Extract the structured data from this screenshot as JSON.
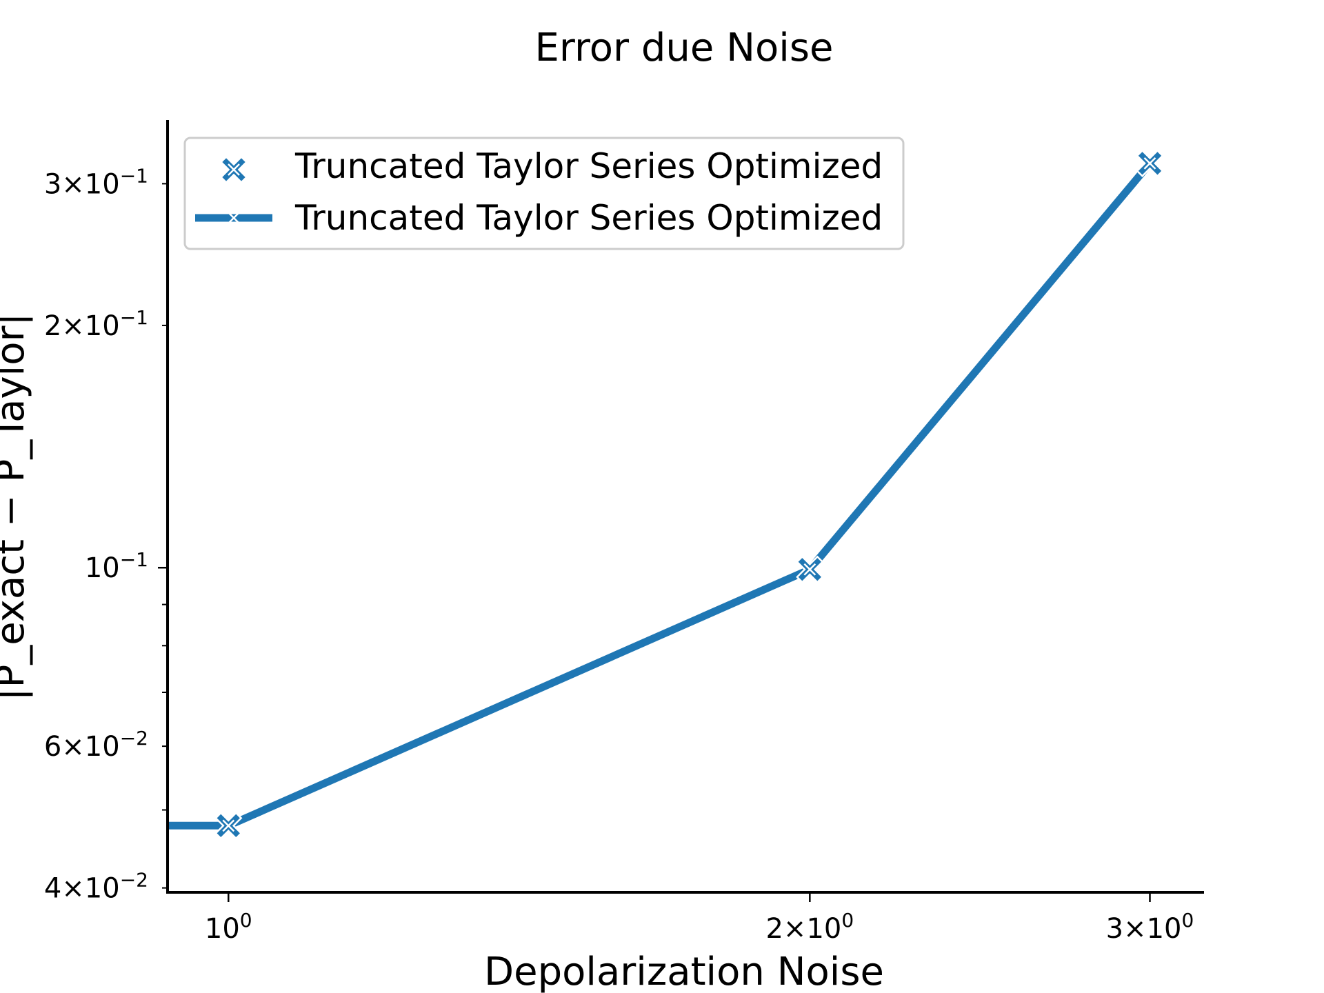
{
  "chart_data": {
    "type": "line",
    "title": "Error due Noise",
    "xlabel": "Depolarization Noise",
    "ylabel": "|P_exact − P_Taylor|",
    "x_scale": "log",
    "y_scale": "log",
    "xlim": [
      0.93,
      3.2
    ],
    "ylim": [
      0.0395,
      0.36
    ],
    "x_ticks": [
      {
        "value": 1,
        "mant": "",
        "exp": "0"
      },
      {
        "value": 2,
        "mant": "2",
        "exp": "0"
      },
      {
        "value": 3,
        "mant": "3",
        "exp": "0"
      }
    ],
    "y_major_ticks": [
      {
        "value": 0.1,
        "mant": "",
        "exp": "−1"
      }
    ],
    "y_minor_ticks": [
      {
        "value": 0.04,
        "mant": "4",
        "exp": "−2"
      },
      {
        "value": 0.05,
        "mant": "",
        "exp": ""
      },
      {
        "value": 0.06,
        "mant": "6",
        "exp": "−2"
      },
      {
        "value": 0.07,
        "mant": "",
        "exp": ""
      },
      {
        "value": 0.08,
        "mant": "",
        "exp": ""
      },
      {
        "value": 0.09,
        "mant": "",
        "exp": ""
      },
      {
        "value": 0.2,
        "mant": "2",
        "exp": "−1"
      },
      {
        "value": 0.3,
        "mant": "3",
        "exp": "−1"
      }
    ],
    "series": [
      {
        "name": "Truncated Taylor Series Optimized",
        "kind": "scatter",
        "marker": "x-filled",
        "color": "#1f77b4",
        "x": [
          1,
          2,
          3
        ],
        "y": [
          0.0478,
          0.0995,
          0.318
        ]
      },
      {
        "name": "Truncated Taylor Series Optimized",
        "kind": "line",
        "marker": "x",
        "color": "#1f77b4",
        "x": [
          0.93,
          1,
          2,
          3
        ],
        "y": [
          0.0478,
          0.0478,
          0.0995,
          0.318
        ]
      }
    ],
    "legend_position": "upper-left",
    "grid": false
  }
}
